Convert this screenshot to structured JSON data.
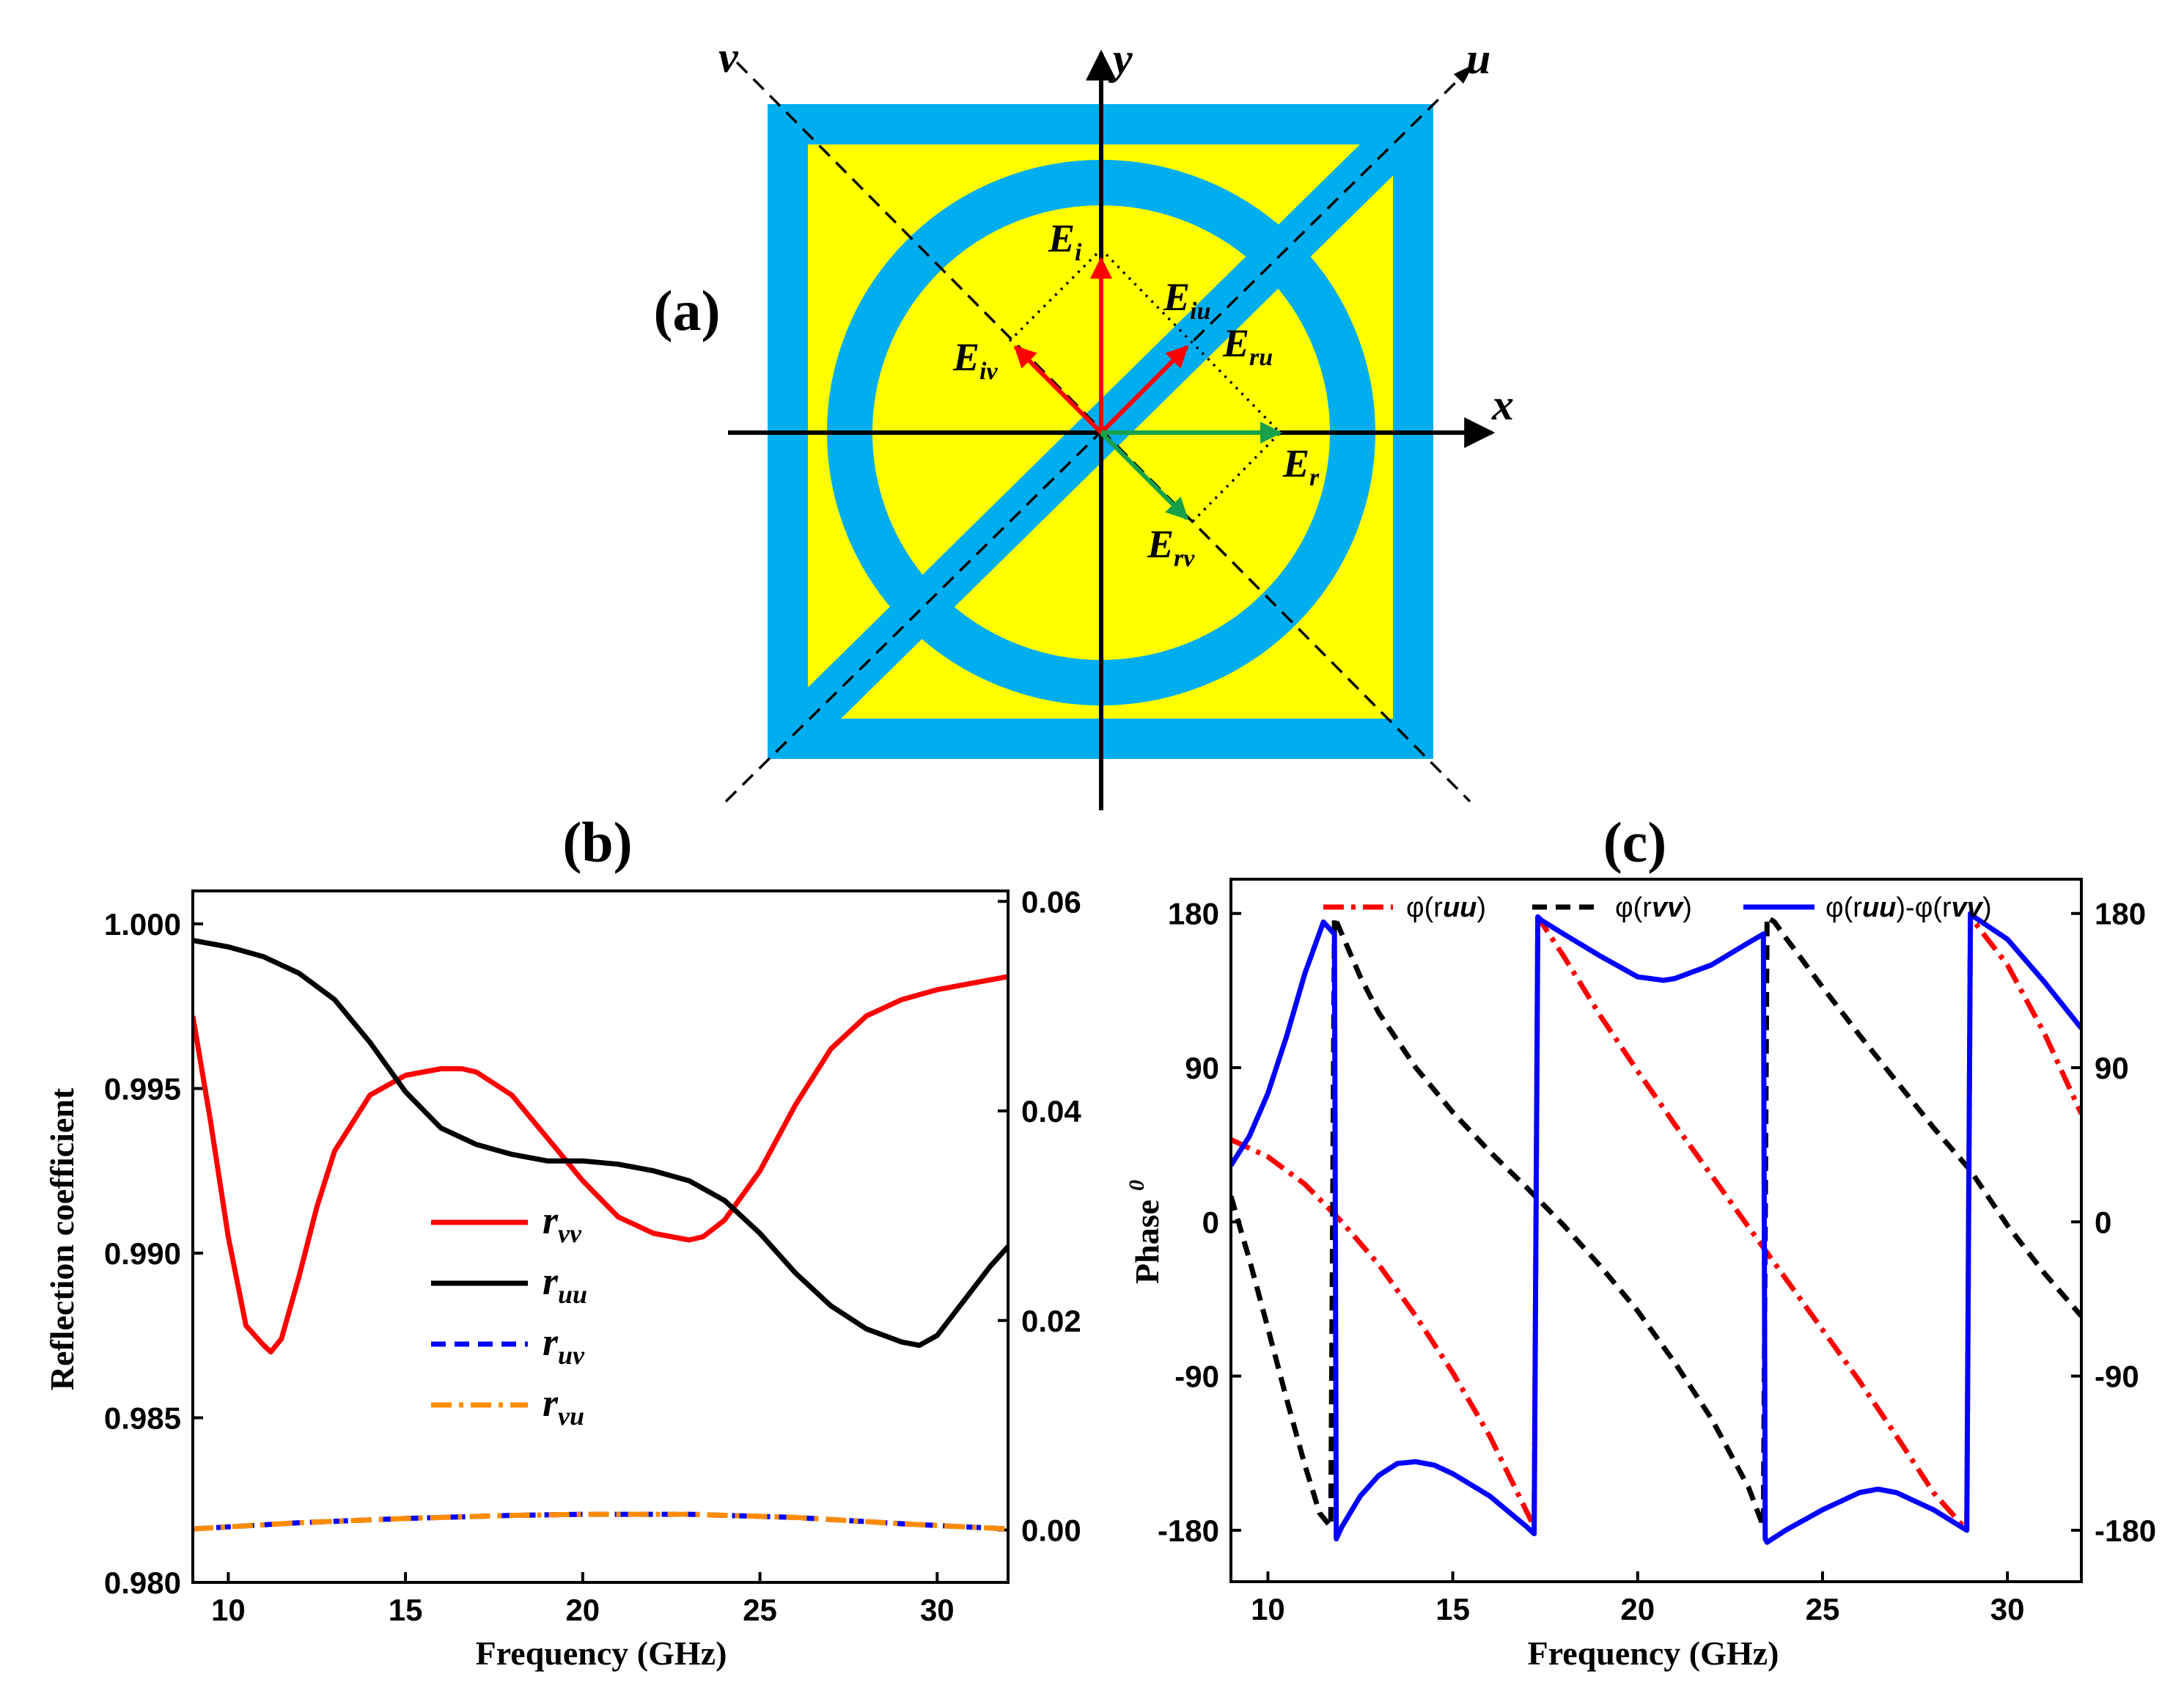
{
  "colors": {
    "square": "#00AEEF",
    "fill": "#FFFF00",
    "red": "#FF0000",
    "black": "#000000",
    "blue": "#0000FF",
    "orange": "#FF8C00",
    "green": "#18A04A"
  },
  "diagram": {
    "panel_label": "(a)",
    "axes": {
      "x": "x",
      "y": "y",
      "u": "u",
      "v": "v"
    },
    "vectors": [
      {
        "name": "E",
        "sub": "i",
        "color_key": "red"
      },
      {
        "name": "E",
        "sub": "iu",
        "color_key": "red"
      },
      {
        "name": "E",
        "sub": "iv",
        "color_key": "red"
      },
      {
        "name": "E",
        "sub": "ru",
        "color_key": "red"
      },
      {
        "name": "E",
        "sub": "r",
        "color_key": "green"
      },
      {
        "name": "E",
        "sub": "rv",
        "color_key": "green"
      }
    ]
  },
  "chart_data": [
    {
      "panel_label": "(b)",
      "type": "line",
      "xlabel": "Frequency (GHz)",
      "ylabel": "Reflection coefficient",
      "xlim": [
        9,
        32
      ],
      "ylim": [
        0.98,
        1.001
      ],
      "y2lim": [
        -0.005,
        0.061
      ],
      "xticks": [
        10,
        15,
        20,
        25,
        30
      ],
      "yticks": [
        0.98,
        0.985,
        0.99,
        0.995,
        1.0
      ],
      "ytick_labels": [
        "0.980",
        "0.985",
        "0.990",
        "0.995",
        "1.000"
      ],
      "y2ticks": [
        0.0,
        0.02,
        0.04,
        0.06
      ],
      "y2tick_labels": [
        "0.00",
        "0.02",
        "0.04",
        "0.06"
      ],
      "legend_position": "center",
      "series": [
        {
          "name": "r",
          "sub": "vv",
          "axis": "left",
          "style": "solid",
          "color_key": "red",
          "x": [
            9,
            9.5,
            10,
            10.5,
            11,
            11.2,
            11.5,
            12,
            12.5,
            13,
            14,
            15,
            16,
            16.6,
            17,
            18,
            19,
            20,
            21,
            22,
            23,
            23.4,
            24,
            25,
            26,
            27,
            28,
            29,
            30,
            31,
            32
          ],
          "y": [
            0.9972,
            0.994,
            0.9905,
            0.9878,
            0.9872,
            0.987,
            0.9874,
            0.9893,
            0.9914,
            0.9931,
            0.9948,
            0.9954,
            0.9956,
            0.9956,
            0.9955,
            0.9948,
            0.9935,
            0.9922,
            0.9911,
            0.9906,
            0.9904,
            0.9905,
            0.991,
            0.9925,
            0.9945,
            0.9962,
            0.9972,
            0.9977,
            0.998,
            0.9982,
            0.9984
          ]
        },
        {
          "name": "r",
          "sub": "uu",
          "axis": "left",
          "style": "solid",
          "color_key": "black",
          "x": [
            9,
            10,
            11,
            12,
            13,
            14,
            15,
            16,
            17,
            18,
            19,
            20,
            21,
            22,
            23,
            24,
            25,
            26,
            27,
            28,
            29,
            29.5,
            30,
            30.5,
            31,
            31.5,
            32
          ],
          "y": [
            0.9995,
            0.9993,
            0.999,
            0.9985,
            0.9977,
            0.9964,
            0.9949,
            0.9938,
            0.9933,
            0.993,
            0.9928,
            0.9928,
            0.9927,
            0.9925,
            0.9922,
            0.9916,
            0.9906,
            0.9894,
            0.9884,
            0.9877,
            0.9873,
            0.9872,
            0.9875,
            0.9882,
            0.9889,
            0.9896,
            0.9902
          ]
        },
        {
          "name": "r",
          "sub": "uv",
          "axis": "right",
          "style": "dashed",
          "color_key": "blue",
          "x": [
            9,
            12,
            15,
            18,
            20,
            23,
            26,
            29,
            32
          ],
          "y": [
            0.0001,
            0.0007,
            0.0011,
            0.0014,
            0.0015,
            0.0015,
            0.0012,
            0.0006,
            0.0001
          ]
        },
        {
          "name": "r",
          "sub": "vu",
          "axis": "right",
          "style": "dashdot",
          "color_key": "orange",
          "x": [
            9,
            12,
            15,
            18,
            20,
            23,
            26,
            29,
            32
          ],
          "y": [
            0.0001,
            0.0007,
            0.0011,
            0.0014,
            0.0015,
            0.0015,
            0.0012,
            0.0006,
            0.0001
          ]
        }
      ]
    },
    {
      "panel_label": "(c)",
      "type": "line",
      "xlabel": "Frequency (GHz)",
      "ylabel": "Phase",
      "ylabel_sup": "0",
      "xlim": [
        9,
        32
      ],
      "ylim": [
        -210,
        200
      ],
      "xticks": [
        10,
        15,
        20,
        25,
        30
      ],
      "yticks": [
        -180,
        -90,
        0,
        90,
        180
      ],
      "ytick_labels": [
        "-180",
        "-90",
        "0",
        "90",
        "180"
      ],
      "legend_position": "top",
      "series": [
        {
          "label": "φ(r",
          "sub": "uu",
          "close": ")",
          "style": "dashdot",
          "color_key": "red",
          "x": [
            9,
            10,
            11,
            12,
            13,
            14,
            15,
            16,
            17.2,
            17.3,
            18,
            19,
            20,
            21,
            22,
            23,
            24,
            25,
            26,
            27,
            28,
            28.9,
            29.0,
            30,
            31,
            32
          ],
          "y": [
            48,
            38,
            22,
            0,
            -25,
            -55,
            -88,
            -125,
            -178,
            178,
            155,
            120,
            88,
            57,
            27,
            -3,
            -33,
            -63,
            -93,
            -125,
            -158,
            -180,
            178,
            150,
            110,
            63
          ]
        },
        {
          "label": "φ(r",
          "sub": "vv",
          "close": ")",
          "style": "dashed",
          "color_key": "black",
          "x": [
            9,
            9.5,
            10,
            10.5,
            11,
            11.4,
            11.7,
            11.8,
            12,
            12.5,
            13,
            14,
            15,
            16,
            17,
            18,
            19,
            20,
            21,
            22,
            23,
            23.4,
            23.5,
            23.7,
            24,
            25,
            26,
            27,
            28,
            29,
            30,
            31,
            32
          ],
          "y": [
            15,
            -22,
            -62,
            -103,
            -142,
            -170,
            -178,
            178,
            168,
            143,
            122,
            90,
            64,
            41,
            20,
            -2,
            -26,
            -52,
            -82,
            -115,
            -155,
            -178,
            178,
            175,
            166,
            137,
            109,
            82,
            55,
            30,
            -2,
            -30,
            -55
          ]
        },
        {
          "label": "φ(r",
          "sub": "uu",
          "mid": ")-φ(r",
          "sub2": "vv",
          "close": ")",
          "style": "solid",
          "color_key": "blue",
          "x": [
            9,
            9.5,
            10,
            10.5,
            11,
            11.5,
            11.8,
            11.85,
            12,
            12.5,
            13,
            13.5,
            14,
            14.5,
            15,
            16,
            17,
            17.2,
            17.3,
            17.4,
            18,
            19,
            20,
            20.7,
            21,
            22,
            23,
            23.4,
            23.45,
            23.5,
            24,
            25,
            26,
            26.5,
            27,
            28,
            28.9,
            29.0,
            29.1,
            30,
            31,
            32
          ],
          "y": [
            33,
            50,
            75,
            108,
            145,
            175,
            168,
            -185,
            -178,
            -160,
            -148,
            -141,
            -140,
            -142,
            -147,
            -160,
            -178,
            -182,
            178,
            176,
            168,
            155,
            143,
            141,
            142,
            150,
            163,
            168,
            -185,
            -187,
            -180,
            -168,
            -158,
            -156,
            -158,
            -168,
            -180,
            180,
            178,
            165,
            140,
            113
          ]
        }
      ]
    }
  ]
}
